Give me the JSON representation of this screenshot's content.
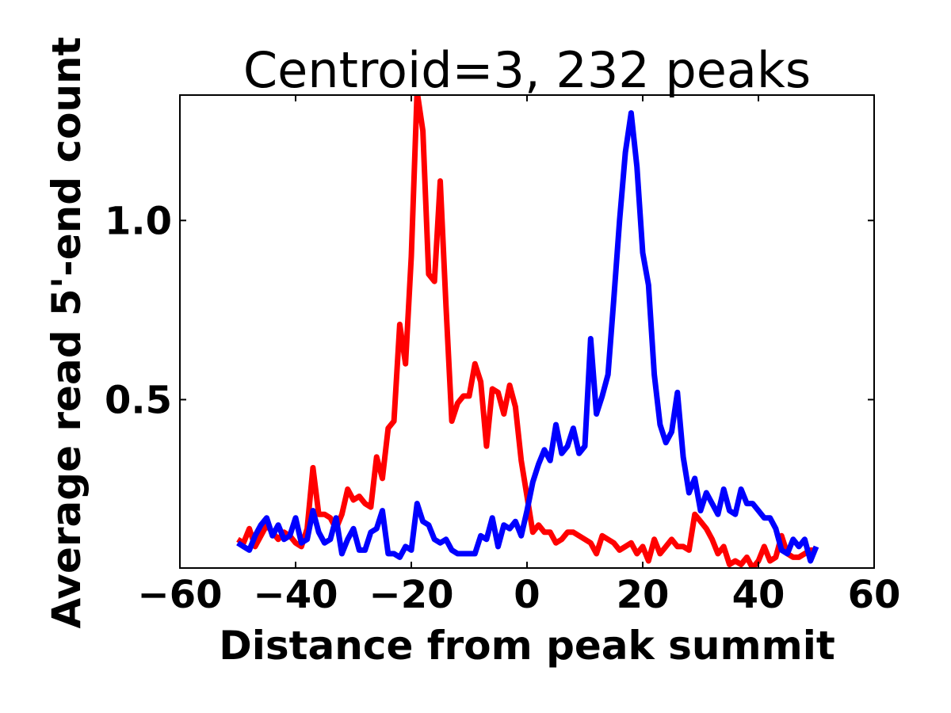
{
  "chart_data": {
    "type": "line",
    "title": "Centroid=3, 232 peaks",
    "xlabel": "Distance from peak summit",
    "ylabel": "Average read 5'-end count",
    "xlim": [
      -60,
      60
    ],
    "ylim": [
      0.03,
      1.35
    ],
    "xticks": [
      -60,
      -40,
      -20,
      0,
      20,
      40,
      60
    ],
    "xtick_labels": [
      "−60",
      "−40",
      "−20",
      "0",
      "20",
      "40",
      "60"
    ],
    "yticks": [
      0.5,
      1.0
    ],
    "ytick_labels": [
      "0.5",
      "1.0"
    ],
    "grid": false,
    "series": [
      {
        "color": "#ff0000",
        "x": [
          -50,
          -49,
          -48,
          -47,
          -46,
          -45,
          -44,
          -43,
          -42,
          -41,
          -40,
          -39,
          -38,
          -37,
          -36,
          -35,
          -34,
          -33,
          -32,
          -31,
          -30,
          -29,
          -28,
          -27,
          -26,
          -25,
          -24,
          -23,
          -22,
          -21,
          -20,
          -19,
          -18,
          -17,
          -16,
          -15,
          -14,
          -13,
          -12,
          -11,
          -10,
          -9,
          -8,
          -7,
          -6,
          -5,
          -4,
          -3,
          -2,
          -1,
          0,
          1,
          2,
          3,
          4,
          5,
          6,
          7,
          8,
          9,
          10,
          11,
          12,
          13,
          14,
          15,
          16,
          17,
          18,
          19,
          20,
          21,
          22,
          23,
          24,
          25,
          26,
          27,
          28,
          29,
          30,
          31,
          32,
          33,
          34,
          35,
          36,
          37,
          38,
          39,
          40,
          41,
          42,
          43,
          44,
          45,
          46,
          47,
          48,
          49,
          50
        ],
        "values": [
          0.11,
          0.1,
          0.14,
          0.09,
          0.12,
          0.15,
          0.13,
          0.11,
          0.13,
          0.12,
          0.1,
          0.09,
          0.14,
          0.31,
          0.18,
          0.18,
          0.17,
          0.14,
          0.18,
          0.25,
          0.22,
          0.23,
          0.21,
          0.2,
          0.34,
          0.28,
          0.42,
          0.44,
          0.71,
          0.6,
          0.9,
          1.36,
          1.25,
          0.85,
          0.83,
          1.11,
          0.76,
          0.44,
          0.49,
          0.51,
          0.51,
          0.6,
          0.55,
          0.37,
          0.53,
          0.52,
          0.46,
          0.54,
          0.48,
          0.33,
          0.23,
          0.13,
          0.15,
          0.13,
          0.13,
          0.1,
          0.11,
          0.13,
          0.13,
          0.12,
          0.11,
          0.1,
          0.07,
          0.12,
          0.11,
          0.1,
          0.08,
          0.09,
          0.1,
          0.07,
          0.09,
          0.05,
          0.11,
          0.07,
          0.09,
          0.11,
          0.09,
          0.09,
          0.08,
          0.18,
          0.16,
          0.14,
          0.11,
          0.07,
          0.09,
          0.04,
          0.05,
          0.04,
          0.06,
          0.03,
          0.05,
          0.09,
          0.05,
          0.06,
          0.12,
          0.07,
          0.06,
          0.06,
          0.07,
          0.08,
          0.08
        ]
      },
      {
        "color": "#0000ff",
        "x": [
          -50,
          -49,
          -48,
          -47,
          -46,
          -45,
          -44,
          -43,
          -42,
          -41,
          -40,
          -39,
          -38,
          -37,
          -36,
          -35,
          -34,
          -33,
          -32,
          -31,
          -30,
          -29,
          -28,
          -27,
          -26,
          -25,
          -24,
          -23,
          -22,
          -21,
          -20,
          -19,
          -18,
          -17,
          -16,
          -15,
          -14,
          -13,
          -12,
          -11,
          -10,
          -9,
          -8,
          -7,
          -6,
          -5,
          -4,
          -3,
          -2,
          -1,
          0,
          1,
          2,
          3,
          4,
          5,
          6,
          7,
          8,
          9,
          10,
          11,
          12,
          13,
          14,
          15,
          16,
          17,
          18,
          19,
          20,
          21,
          22,
          23,
          24,
          25,
          26,
          27,
          28,
          29,
          30,
          31,
          32,
          33,
          34,
          35,
          36,
          37,
          38,
          39,
          40,
          41,
          42,
          43,
          44,
          45,
          46,
          47,
          48,
          49,
          50
        ],
        "values": [
          0.1,
          0.09,
          0.08,
          0.12,
          0.15,
          0.17,
          0.12,
          0.15,
          0.11,
          0.12,
          0.17,
          0.1,
          0.11,
          0.19,
          0.13,
          0.1,
          0.11,
          0.17,
          0.07,
          0.11,
          0.14,
          0.08,
          0.08,
          0.13,
          0.14,
          0.19,
          0.07,
          0.07,
          0.06,
          0.09,
          0.08,
          0.21,
          0.16,
          0.15,
          0.11,
          0.1,
          0.11,
          0.08,
          0.07,
          0.07,
          0.07,
          0.07,
          0.12,
          0.11,
          0.17,
          0.09,
          0.15,
          0.14,
          0.16,
          0.12,
          0.19,
          0.27,
          0.32,
          0.36,
          0.33,
          0.43,
          0.35,
          0.37,
          0.42,
          0.35,
          0.37,
          0.67,
          0.46,
          0.51,
          0.57,
          0.78,
          1.0,
          1.19,
          1.3,
          1.15,
          0.91,
          0.82,
          0.57,
          0.43,
          0.38,
          0.41,
          0.52,
          0.34,
          0.24,
          0.28,
          0.19,
          0.24,
          0.21,
          0.18,
          0.25,
          0.19,
          0.18,
          0.25,
          0.21,
          0.21,
          0.19,
          0.17,
          0.17,
          0.14,
          0.08,
          0.07,
          0.11,
          0.09,
          0.11,
          0.05,
          0.09
        ]
      }
    ]
  }
}
